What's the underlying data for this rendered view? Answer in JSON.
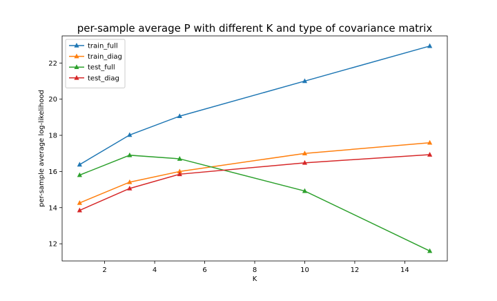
{
  "chart_data": {
    "type": "line",
    "title": "per-sample average P with different K and type of covariance matrix",
    "xlabel": "K",
    "ylabel": "per-sample average log-likelihood",
    "x": [
      1,
      3,
      5,
      10,
      15
    ],
    "xlim": [
      0.3,
      15.7
    ],
    "ylim": [
      11.05,
      23.5
    ],
    "xticks": [
      2,
      4,
      6,
      8,
      10,
      12,
      14
    ],
    "yticks": [
      12,
      14,
      16,
      18,
      20,
      22
    ],
    "grid": false,
    "legend_position": "top-left",
    "marker": "triangle",
    "series": [
      {
        "name": "train_full",
        "color": "#1f77b4",
        "values": [
          16.38,
          18.02,
          19.06,
          21.0,
          22.94
        ]
      },
      {
        "name": "train_diag",
        "color": "#ff7f0e",
        "values": [
          14.26,
          15.41,
          16.0,
          17.0,
          17.59
        ]
      },
      {
        "name": "test_full",
        "color": "#2ca02c",
        "values": [
          15.8,
          16.9,
          16.7,
          14.92,
          11.6
        ]
      },
      {
        "name": "test_diag",
        "color": "#d62728",
        "values": [
          13.85,
          15.06,
          15.85,
          16.48,
          16.93
        ]
      }
    ]
  }
}
